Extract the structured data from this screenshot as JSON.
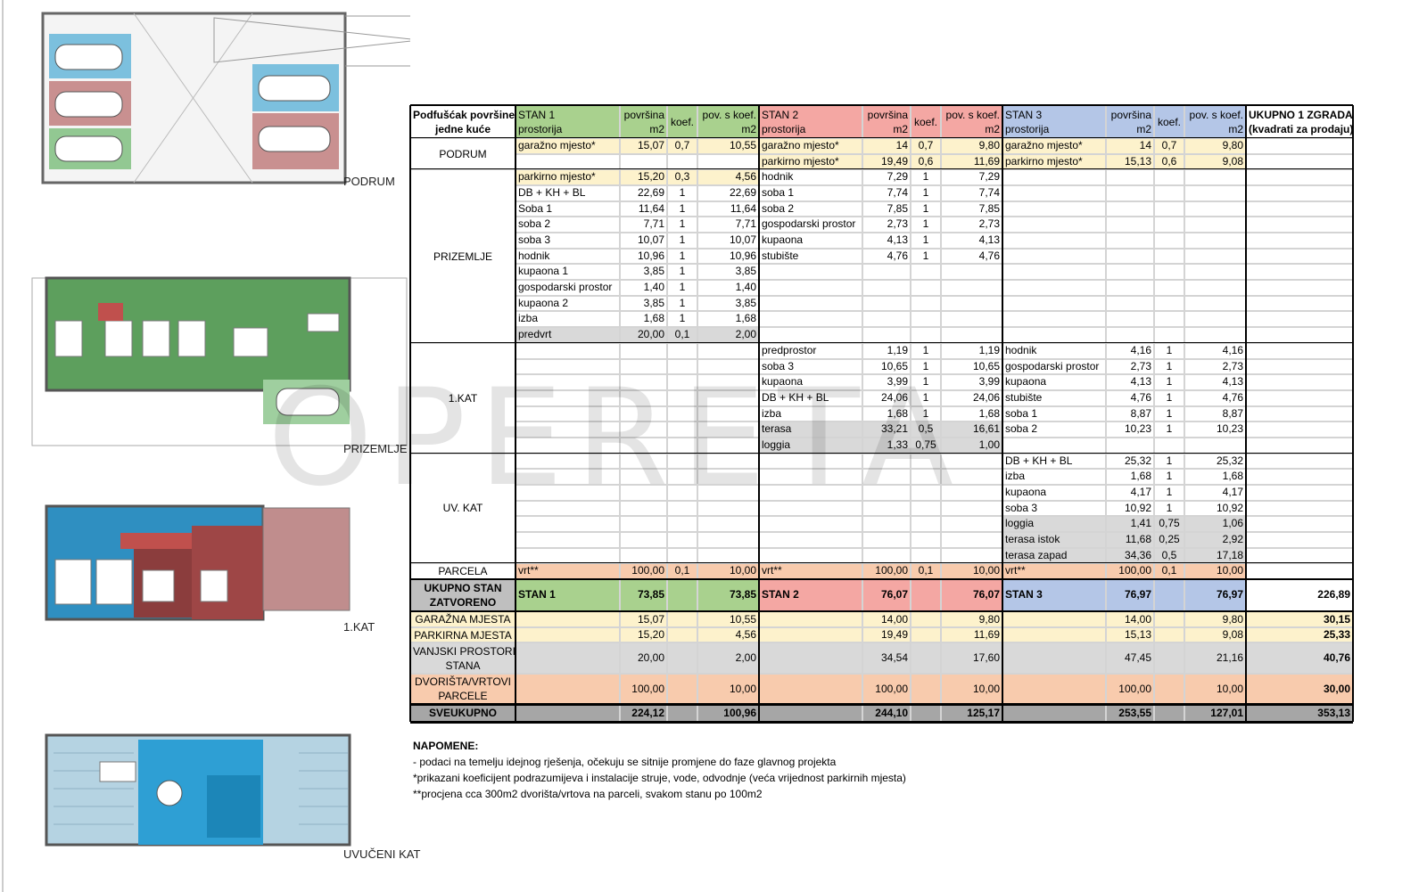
{
  "watermark": "OPERETA",
  "plans": [
    {
      "label": "PODRUM"
    },
    {
      "label": "PRIZEMLJE"
    },
    {
      "label": "1.KAT"
    },
    {
      "label": "UVUČENI KAT"
    }
  ],
  "table": {
    "header": {
      "corner": [
        "Podfušćak površine",
        "jedne kuće"
      ],
      "stans": [
        {
          "name": "STAN 1",
          "fill": "#a9d18e"
        },
        {
          "name": "STAN 2",
          "fill": "#f4a7a3"
        },
        {
          "name": "STAN 3",
          "fill": "#b4c6e7"
        }
      ],
      "room": "prostorija",
      "area": [
        "površina",
        "m2"
      ],
      "koef": "koef.",
      "value": [
        "pov. s koef.",
        "m2"
      ],
      "total": [
        "UKUPNO 1 ZGRADA",
        "(kvadrati za prodaju)"
      ]
    },
    "sections": [
      {
        "label": "PODRUM",
        "rows": [
          [
            {
              "cells": [
                "garažno mjesto*",
                "15,07",
                "0,7",
                "10,55"
              ],
              "fill": "#fdf2cc"
            },
            {
              "cells": [
                "garažno mjesto*",
                "14",
                "0,7",
                "9,80"
              ],
              "fill": "#fdf2cc"
            },
            {
              "cells": [
                "garažno mjesto*",
                "14",
                "0,7",
                "9,80"
              ],
              "fill": "#fdf2cc"
            }
          ],
          [
            null,
            {
              "cells": [
                "parkirno mjesto*",
                "19,49",
                "0,6",
                "11,69"
              ],
              "fill": "#fdf2cc"
            },
            {
              "cells": [
                "parkirno mjesto*",
                "15,13",
                "0,6",
                "9,08"
              ],
              "fill": "#fdf2cc"
            }
          ]
        ]
      },
      {
        "label": "PRIZEMLJE",
        "rows": [
          [
            {
              "cells": [
                "parkirno mjesto*",
                "15,20",
                "0,3",
                "4,56"
              ],
              "fill": "#fdf2cc"
            },
            {
              "cells": [
                "hodnik",
                "7,29",
                "1",
                "7,29"
              ]
            },
            null
          ],
          [
            {
              "cells": [
                "DB + KH + BL",
                "22,69",
                "1",
                "22,69"
              ]
            },
            {
              "cells": [
                "soba 1",
                "7,74",
                "1",
                "7,74"
              ]
            },
            null
          ],
          [
            {
              "cells": [
                "Soba 1",
                "11,64",
                "1",
                "11,64"
              ]
            },
            {
              "cells": [
                "soba 2",
                "7,85",
                "1",
                "7,85"
              ]
            },
            null
          ],
          [
            {
              "cells": [
                "soba 2",
                "7,71",
                "1",
                "7,71"
              ]
            },
            {
              "cells": [
                "gospodarski prostor",
                "2,73",
                "1",
                "2,73"
              ]
            },
            null
          ],
          [
            {
              "cells": [
                "soba 3",
                "10,07",
                "1",
                "10,07"
              ]
            },
            {
              "cells": [
                "kupaona",
                "4,13",
                "1",
                "4,13"
              ]
            },
            null
          ],
          [
            {
              "cells": [
                "hodnik",
                "10,96",
                "1",
                "10,96"
              ]
            },
            {
              "cells": [
                "stubište",
                "4,76",
                "1",
                "4,76"
              ]
            },
            null
          ],
          [
            {
              "cells": [
                "kupaona 1",
                "3,85",
                "1",
                "3,85"
              ]
            },
            null,
            null
          ],
          [
            {
              "cells": [
                "gospodarski prostor",
                "1,40",
                "1",
                "1,40"
              ]
            },
            null,
            null
          ],
          [
            {
              "cells": [
                "kupaona 2",
                "3,85",
                "1",
                "3,85"
              ]
            },
            null,
            null
          ],
          [
            {
              "cells": [
                "izba",
                "1,68",
                "1",
                "1,68"
              ]
            },
            null,
            null
          ],
          [
            {
              "cells": [
                "predvrt",
                "20,00",
                "0,1",
                "2,00"
              ],
              "fill": "#d9d9d9"
            },
            null,
            null
          ]
        ]
      },
      {
        "label": "1.KAT",
        "rows": [
          [
            null,
            {
              "cells": [
                "predprostor",
                "1,19",
                "1",
                "1,19"
              ]
            },
            {
              "cells": [
                "hodnik",
                "4,16",
                "1",
                "4,16"
              ]
            }
          ],
          [
            null,
            {
              "cells": [
                "soba 3",
                "10,65",
                "1",
                "10,65"
              ]
            },
            {
              "cells": [
                "gospodarski prostor",
                "2,73",
                "1",
                "2,73"
              ]
            }
          ],
          [
            null,
            {
              "cells": [
                "kupaona",
                "3,99",
                "1",
                "3,99"
              ]
            },
            {
              "cells": [
                "kupaona",
                "4,13",
                "1",
                "4,13"
              ]
            }
          ],
          [
            null,
            {
              "cells": [
                "DB + KH + BL",
                "24,06",
                "1",
                "24,06"
              ]
            },
            {
              "cells": [
                "stubište",
                "4,76",
                "1",
                "4,76"
              ]
            }
          ],
          [
            null,
            {
              "cells": [
                "izba",
                "1,68",
                "1",
                "1,68"
              ]
            },
            {
              "cells": [
                "soba 1",
                "8,87",
                "1",
                "8,87"
              ]
            }
          ],
          [
            null,
            {
              "cells": [
                "terasa",
                "33,21",
                "0,5",
                "16,61"
              ],
              "fill": "#d9d9d9"
            },
            {
              "cells": [
                "soba 2",
                "10,23",
                "1",
                "10,23"
              ]
            }
          ],
          [
            null,
            {
              "cells": [
                "loggia",
                "1,33",
                "0,75",
                "1,00"
              ],
              "fill": "#d9d9d9"
            },
            null
          ]
        ]
      },
      {
        "label": "UV. KAT",
        "rows": [
          [
            null,
            null,
            {
              "cells": [
                "DB + KH + BL",
                "25,32",
                "1",
                "25,32"
              ]
            }
          ],
          [
            null,
            null,
            {
              "cells": [
                "izba",
                "1,68",
                "1",
                "1,68"
              ]
            }
          ],
          [
            null,
            null,
            {
              "cells": [
                "kupaona",
                "4,17",
                "1",
                "4,17"
              ]
            }
          ],
          [
            null,
            null,
            {
              "cells": [
                "soba 3",
                "10,92",
                "1",
                "10,92"
              ]
            }
          ],
          [
            null,
            null,
            {
              "cells": [
                "loggia",
                "1,41",
                "0,75",
                "1,06"
              ],
              "fill": "#d9d9d9"
            }
          ],
          [
            null,
            null,
            {
              "cells": [
                "terasa istok",
                "11,68",
                "0,25",
                "2,92"
              ],
              "fill": "#d9d9d9"
            }
          ],
          [
            null,
            null,
            {
              "cells": [
                "terasa zapad",
                "34,36",
                "0,5",
                "17,18"
              ],
              "fill": "#d9d9d9"
            }
          ]
        ]
      },
      {
        "label": "PARCELA",
        "rows": [
          [
            {
              "cells": [
                "vrt**",
                "100,00",
                "0,1",
                "10,00"
              ],
              "fill": "#f8cbad"
            },
            {
              "cells": [
                "vrt**",
                "100,00",
                "0,1",
                "10,00"
              ],
              "fill": "#f8cbad"
            },
            {
              "cells": [
                "vrt**",
                "100,00",
                "0,1",
                "10,00"
              ],
              "fill": "#f8cbad"
            }
          ]
        ]
      }
    ],
    "summary": [
      {
        "label": [
          "UKUPNO STAN",
          "ZATVORENO"
        ],
        "label_fill": "#bfbfbf",
        "stans": [
          {
            "cells": [
              "STAN 1",
              "73,85",
              "73,85"
            ],
            "fill": "#a9d18e"
          },
          {
            "cells": [
              "STAN 2",
              "76,07",
              "76,07"
            ],
            "fill": "#f4a7a3"
          },
          {
            "cells": [
              "STAN 3",
              "76,97",
              "76,97"
            ],
            "fill": "#b4c6e7"
          }
        ],
        "total": "226,89"
      },
      {
        "label": [
          "GARAŽNA MJESTA"
        ],
        "fill": "#fdf2cc",
        "stans": [
          {
            "cells": [
              "15,07",
              "10,55"
            ]
          },
          {
            "cells": [
              "14,00",
              "9,80"
            ]
          },
          {
            "cells": [
              "14,00",
              "9,80"
            ]
          }
        ],
        "total": "30,15"
      },
      {
        "label": [
          "PARKIRNA MJESTA"
        ],
        "fill": "#fdf2cc",
        "stans": [
          {
            "cells": [
              "15,20",
              "4,56"
            ]
          },
          {
            "cells": [
              "19,49",
              "11,69"
            ]
          },
          {
            "cells": [
              "15,13",
              "9,08"
            ]
          }
        ],
        "total": "25,33"
      },
      {
        "label": [
          "VANJSKI PROSTORI",
          "STANA"
        ],
        "fill": "#d9d9d9",
        "stans": [
          {
            "cells": [
              "20,00",
              "2,00"
            ]
          },
          {
            "cells": [
              "34,54",
              "17,60"
            ]
          },
          {
            "cells": [
              "47,45",
              "21,16"
            ]
          }
        ],
        "total": "40,76"
      },
      {
        "label": [
          "DVORIŠTA/VRTOVI",
          "PARCELE"
        ],
        "fill": "#f8cbad",
        "stans": [
          {
            "cells": [
              "100,00",
              "10,00"
            ]
          },
          {
            "cells": [
              "100,00",
              "10,00"
            ]
          },
          {
            "cells": [
              "100,00",
              "10,00"
            ]
          }
        ],
        "total": "30,00"
      },
      {
        "label": [
          "SVEUKUPNO"
        ],
        "fill": "#a6a6a6",
        "stans": [
          {
            "cells": [
              "224,12",
              "100,96"
            ]
          },
          {
            "cells": [
              "244,10",
              "125,17"
            ]
          },
          {
            "cells": [
              "253,55",
              "127,01"
            ]
          }
        ],
        "total": "353,13"
      }
    ]
  },
  "notes": {
    "title": "NAPOMENE:",
    "lines": [
      "- podaci na temelju idejnog rješenja, očekuju se sitnije promjene do faze glavnog projekta",
      "*prikazani koeficijent podrazumijeva i instalacije struje, vode, odvodnje (veća vrijednost parkirnih mjesta)",
      "**procjena cca 300m2 dvorišta/vrtova na parceli, svakom stanu po 100m2"
    ]
  }
}
